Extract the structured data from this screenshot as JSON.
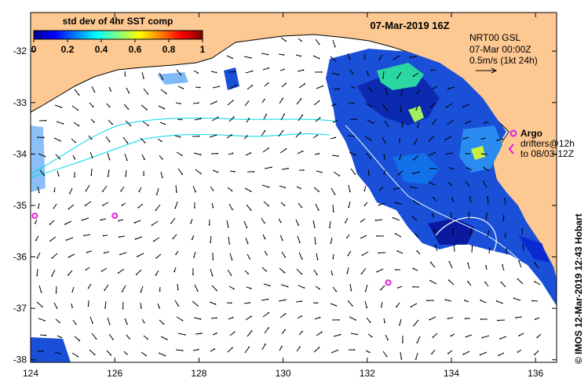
{
  "map": {
    "date_title": "07-Mar-2019 16Z",
    "x_ticks": [
      124,
      126,
      128,
      130,
      132,
      134,
      136
    ],
    "y_ticks": [
      -32,
      -33,
      -34,
      -35,
      -36,
      -37,
      -38
    ],
    "x_range": [
      124,
      136.5
    ],
    "y_range": [
      -38.05,
      -31.25
    ],
    "x_tick_labels": [
      "124",
      "126",
      "128",
      "130",
      "132",
      "134",
      "136"
    ],
    "y_tick_labels": [
      "-32",
      "-33",
      "-34",
      "-35",
      "-36",
      "-37",
      "-38"
    ]
  },
  "colorbar": {
    "title": "std dev of 4hr SST comp",
    "tick_labels": [
      "0",
      "0.2",
      "0.4",
      "0.6",
      "0.8",
      "1"
    ],
    "colors": [
      "#00008f",
      "#0000ff",
      "#0080ff",
      "#00ffff",
      "#80ff80",
      "#ffff00",
      "#ff8000",
      "#ff0000",
      "#800000"
    ]
  },
  "legend": {
    "line1": "NRT00 GSL",
    "line2": "07-Mar 00:00Z",
    "line3": "0.5m/s (1kt 24h)",
    "argo_label": "Argo",
    "drifters_line1": "drifters@12h",
    "drifters_line2": "to 08/03-12Z"
  },
  "credit": "© IMOS 12-Mar-2019 12:43 Hobart",
  "colors": {
    "land": "#fdc891",
    "ocean": "#ffffff",
    "contour": "#00d8e8",
    "argo": "#e020e0"
  },
  "argo_floats": [
    {
      "lon": 126.0,
      "lat": -35.2
    },
    {
      "lon": 132.5,
      "lat": -36.5
    },
    {
      "lon": 124.1,
      "lat": -35.2
    }
  ]
}
